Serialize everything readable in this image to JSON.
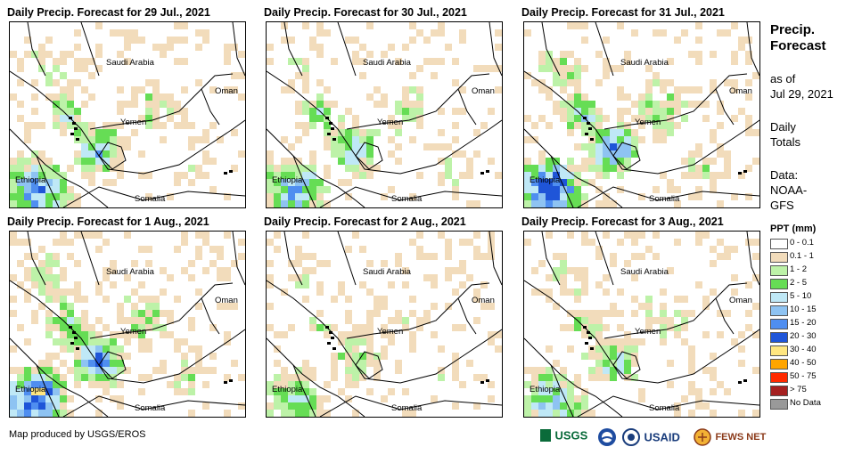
{
  "panels": [
    {
      "title": "Daily Precip. Forecast for 29 Jul., 2021",
      "intensity": 1.0
    },
    {
      "title": "Daily Precip. Forecast for 30 Jul., 2021",
      "intensity": 0.9
    },
    {
      "title": "Daily Precip. Forecast for 31 Jul., 2021",
      "intensity": 1.3
    },
    {
      "title": "Daily Precip. Forecast for 1 Aug., 2021",
      "intensity": 1.25
    },
    {
      "title": "Daily Precip. Forecast for 2 Aug., 2021",
      "intensity": 0.55
    },
    {
      "title": "Daily Precip. Forecast for 3 Aug., 2021",
      "intensity": 0.75
    }
  ],
  "map_labels": {
    "saudi": "Saudi Arabia",
    "oman": "Oman",
    "yemen": "Yemen",
    "ethiopia": "Ethiopia",
    "somalia": "Somalia"
  },
  "side": {
    "title_line1": "Precip.",
    "title_line2": "Forecast",
    "asof_line1": "as of",
    "asof_line2": "Jul 29, 2021",
    "daily_line1": "Daily",
    "daily_line2": "Totals",
    "data_line1": "Data:",
    "data_line2": "NOAA-",
    "data_line3": "GFS"
  },
  "legend": {
    "title": "PPT (mm)",
    "items": [
      {
        "label": "0 - 0.1",
        "color": "#ffffff"
      },
      {
        "label": "0.1 - 1",
        "color": "#f2dcbb"
      },
      {
        "label": "1 - 2",
        "color": "#bdf2a8"
      },
      {
        "label": "2 - 5",
        "color": "#66dd55"
      },
      {
        "label": "5 - 10",
        "color": "#bfe8f6"
      },
      {
        "label": "10 - 15",
        "color": "#8ec3f2"
      },
      {
        "label": "15 - 20",
        "color": "#4f8ef0"
      },
      {
        "label": "20 - 30",
        "color": "#1f55d8"
      },
      {
        "label": "30 - 40",
        "color": "#ffe680"
      },
      {
        "label": "40 - 50",
        "color": "#ffa500"
      },
      {
        "label": "50 - 75",
        "color": "#ff2a00"
      },
      {
        "label": "> 75",
        "color": "#a52020"
      },
      {
        "label": "No Data",
        "color": "#999999"
      }
    ]
  },
  "credit": "Map produced by USGS/EROS",
  "logos": {
    "usgs": "USGS",
    "usaid": "USAID",
    "fewsnet": "FEWS NET"
  }
}
